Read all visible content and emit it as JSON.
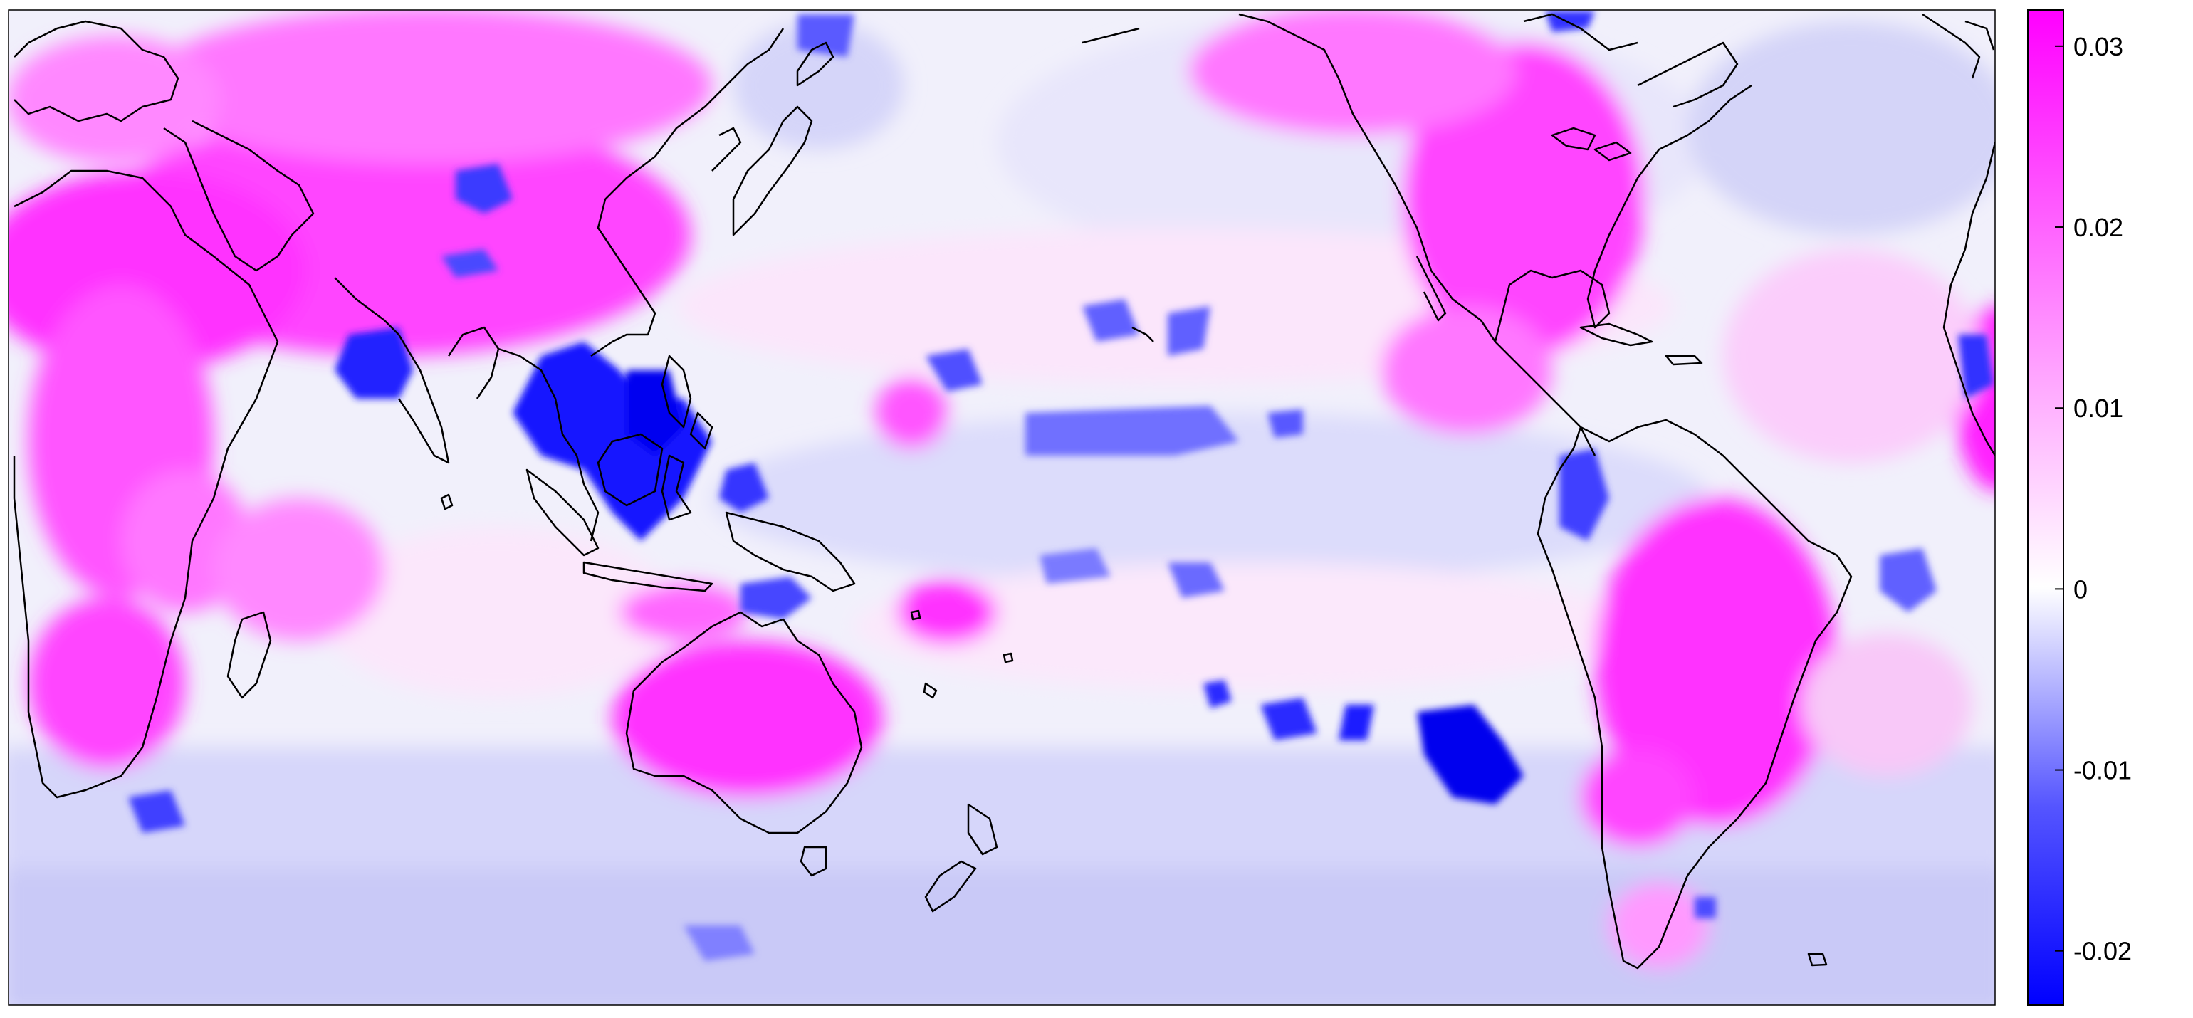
{
  "figure": {
    "kind": "global anomaly map with colorbar",
    "projection": "equirectangular, Pacific-centered",
    "coastlines": "black outlines",
    "color_scale": {
      "min_color": "#0000ff",
      "mid_color": "#ffffff",
      "max_color": "#ff00ff",
      "range": [
        -0.023,
        0.032
      ]
    }
  },
  "colorbar": {
    "ticks": [
      {
        "label": "0.03",
        "value": 0.03
      },
      {
        "label": "0.02",
        "value": 0.02
      },
      {
        "label": "0.01",
        "value": 0.01
      },
      {
        "label": "0",
        "value": 0
      },
      {
        "label": "-0.01",
        "value": -0.01
      },
      {
        "label": "-0.02",
        "value": -0.02
      }
    ]
  }
}
